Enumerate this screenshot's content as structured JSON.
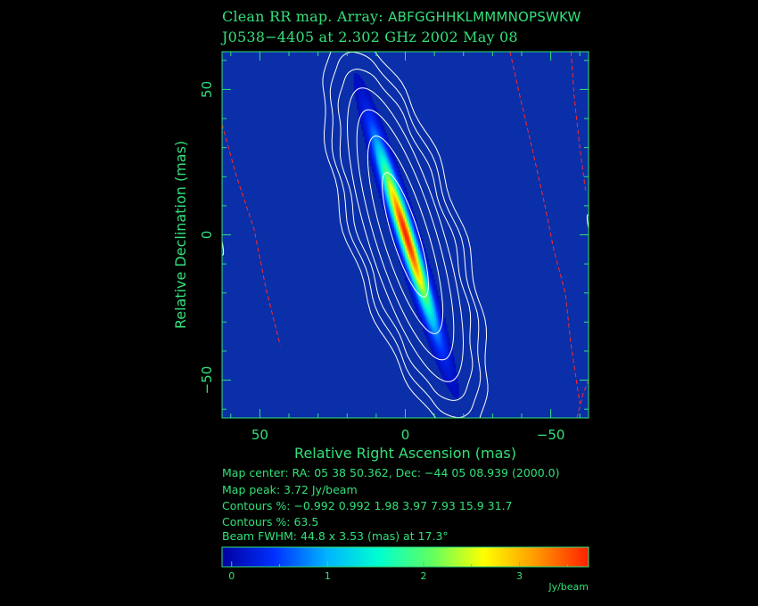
{
  "title_line1": {
    "prefix": "Clean RR map.  Array: ",
    "array": "ABFGGHHKLMMMNOPSWKW"
  },
  "title_line2": "J0538−4405 at 2.302 GHz 2002 May 08",
  "info": {
    "map_center": "Map center:  RA: 05 38 50.362,   Dec: −44 05 08.939 (2000.0)",
    "map_peak": "Map peak: 3.72 Jy/beam",
    "contours1": "Contours %: −0.992 0.992 1.98 3.97 7.93 15.9 31.7",
    "contours2": "Contours %: 63.5",
    "beam": "Beam FWHM: 44.8 x 3.53 (mas) at 17.3°"
  },
  "colors": {
    "text": "#33e07a",
    "background": "#000000",
    "map_background": "#0a2fa8",
    "contour_positive": "#ffffff",
    "contour_negative": "#ff2a2a"
  },
  "chart_data": {
    "type": "heatmap",
    "xlabel": "Relative Right Ascension  (mas)",
    "ylabel": "Relative Declination  (mas)",
    "xlim": [
      63,
      -63
    ],
    "ylim": [
      -63,
      63
    ],
    "x_ticks": [
      {
        "value": 50,
        "label": "50"
      },
      {
        "value": 0,
        "label": "0"
      },
      {
        "value": -50,
        "label": "−50"
      }
    ],
    "y_ticks": [
      {
        "value": 50,
        "label": "50"
      },
      {
        "value": 0,
        "label": "0"
      },
      {
        "value": -50,
        "label": "−50"
      }
    ],
    "peak_jy_per_beam": 3.72,
    "contour_levels_percent": [
      -0.992,
      0.992,
      1.98,
      3.97,
      7.93,
      15.9,
      31.7,
      63.5
    ],
    "beam": {
      "major_mas": 44.8,
      "minor_mas": 3.53,
      "pa_deg": 17.3
    },
    "source": {
      "x_mas": 0,
      "y_mas": 0,
      "major_fwhm_mas": 48,
      "minor_fwhm_mas": 4,
      "pa_deg": 17.3
    },
    "colorbar": {
      "range": [
        -0.1,
        3.72
      ],
      "ticks": [
        {
          "value": 0,
          "label": "0"
        },
        {
          "value": 1,
          "label": "1"
        },
        {
          "value": 2,
          "label": "2"
        },
        {
          "value": 3,
          "label": "3"
        }
      ],
      "unit": "Jy/beam",
      "colors": [
        "#0000a0",
        "#0030ff",
        "#00b4ff",
        "#00ffd0",
        "#60ff60",
        "#ffff00",
        "#ff9800",
        "#ff2000"
      ]
    }
  }
}
